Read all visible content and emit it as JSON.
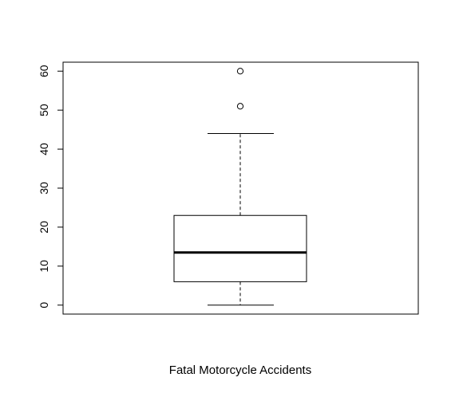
{
  "chart_data": {
    "type": "boxplot",
    "title": "",
    "xlabel": "Fatal Motorcycle Accidents",
    "ylabel": "",
    "ylim": [
      -2.3,
      62.3
    ],
    "yticks": [
      0,
      10,
      20,
      30,
      40,
      50,
      60
    ],
    "grid": false,
    "box": {
      "whisker_low": 0,
      "q1": 6,
      "median": 13.5,
      "q3": 23,
      "whisker_high": 44,
      "outliers": [
        51,
        60
      ]
    }
  }
}
